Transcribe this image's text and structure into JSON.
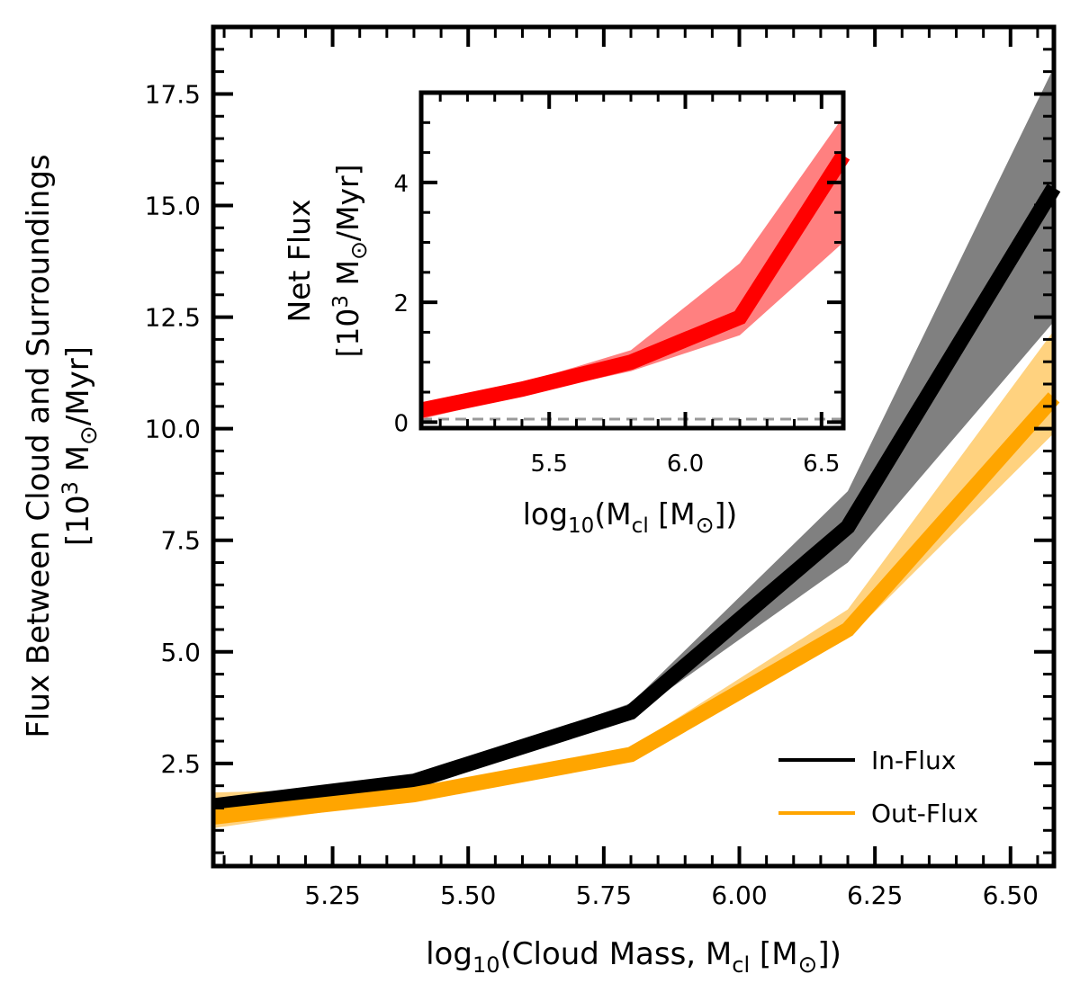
{
  "chart_data": [
    {
      "id": "main",
      "type": "line",
      "title": "",
      "xlabel": {
        "prefix": "log",
        "sub": "10",
        "middle": "(Cloud Mass, M",
        "sub2": "cl",
        "middle2": " [M",
        "sun": "⊙",
        "suffix": "])"
      },
      "ylabel": {
        "line1": "Flux Between Cloud and Surroundings",
        "line2": {
          "prefix": "[10",
          "sup": "3",
          "middle": " M",
          "sun": "⊙",
          "suffix": "/Myr]"
        }
      },
      "xlim": [
        5.03,
        6.58
      ],
      "ylim": [
        0.2,
        19.0
      ],
      "xticks": [
        5.25,
        5.5,
        5.75,
        6.0,
        6.25,
        6.5
      ],
      "xtick_labels": [
        "5.25",
        "5.50",
        "5.75",
        "6.00",
        "6.25",
        "6.50"
      ],
      "yticks": [
        2.5,
        5.0,
        7.5,
        10.0,
        12.5,
        15.0,
        17.5
      ],
      "ytick_labels": [
        "2.5",
        "5.0",
        "7.5",
        "10.0",
        "12.5",
        "15.0",
        "17.5"
      ],
      "x": [
        5.03,
        5.4,
        5.8,
        6.2,
        6.58
      ],
      "series": [
        {
          "name": "In-Flux",
          "color": "#000000",
          "band_color": "#808080",
          "values": [
            1.55,
            2.1,
            3.65,
            7.8,
            15.4
          ],
          "lower": [
            1.45,
            2.0,
            3.55,
            7.0,
            12.4
          ],
          "upper": [
            1.65,
            2.15,
            3.85,
            8.6,
            18.1
          ]
        },
        {
          "name": "Out-Flux",
          "color": "#FFA500",
          "band_color": "#FFD27F",
          "values": [
            1.3,
            1.8,
            2.7,
            5.5,
            10.7
          ],
          "lower": [
            1.05,
            1.7,
            2.6,
            5.3,
            9.9
          ],
          "upper": [
            1.85,
            1.95,
            2.85,
            5.95,
            12.2
          ]
        }
      ],
      "legend": {
        "location": "lower-right",
        "entries": [
          "In-Flux",
          "Out-Flux"
        ]
      }
    },
    {
      "id": "inset",
      "type": "line",
      "title": "",
      "xlabel": {
        "prefix": "log",
        "sub": "10",
        "middle": "(M",
        "sub2": "cl",
        "middle2": " [M",
        "sun": "⊙",
        "suffix": "])"
      },
      "ylabel": {
        "line1": "Net Flux",
        "line2": {
          "prefix": "[10",
          "sup": "3",
          "middle": " M",
          "sun": "⊙",
          "suffix": "/Myr]"
        }
      },
      "xlim": [
        5.03,
        6.58
      ],
      "ylim": [
        -0.1,
        5.5
      ],
      "xticks": [
        5.5,
        6.0,
        6.5
      ],
      "xtick_labels": [
        "5.5",
        "6.0",
        "6.5"
      ],
      "yticks": [
        0,
        2,
        4
      ],
      "ytick_labels": [
        "0",
        "2",
        "4"
      ],
      "x": [
        5.03,
        5.4,
        5.8,
        6.2,
        6.58
      ],
      "series": [
        {
          "name": "Net Flux",
          "color": "#FF0000",
          "band_color": "#FF8080",
          "values": [
            0.2,
            0.55,
            1.0,
            1.75,
            4.45
          ],
          "lower": [
            0.05,
            0.45,
            0.85,
            1.45,
            3.0
          ],
          "upper": [
            0.3,
            0.65,
            1.2,
            2.65,
            5.1
          ]
        }
      ],
      "reference_line": {
        "y": 0.05,
        "color": "#999999",
        "style": "dashed"
      }
    }
  ]
}
